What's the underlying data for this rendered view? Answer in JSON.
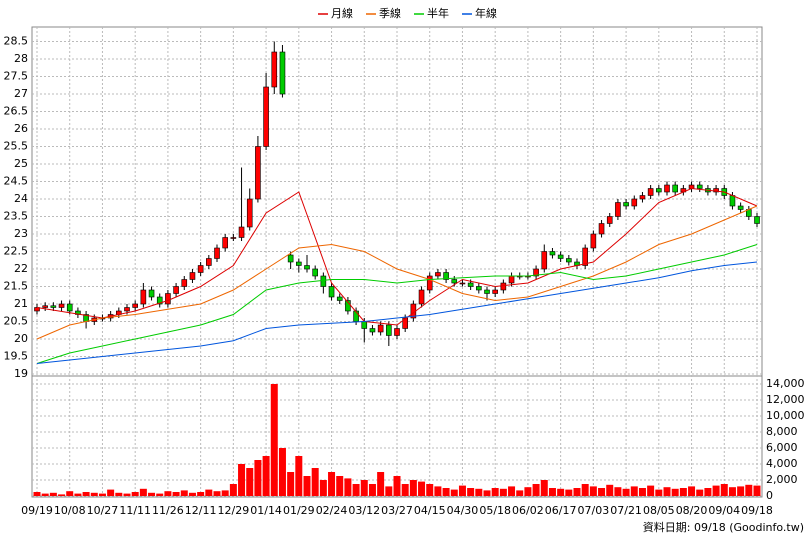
{
  "chart_data": {
    "type": "candlestick",
    "legend": [
      "月線",
      "季線",
      "半年",
      "年線"
    ],
    "footer": "資料日期: 09/18  (Goodinfo.tw)",
    "xlim": [
      0,
      88
    ],
    "xticks": [
      {
        "value": 0,
        "label": "09/19"
      },
      {
        "value": 4,
        "label": "10/08"
      },
      {
        "value": 8,
        "label": "10/27"
      },
      {
        "value": 12,
        "label": "11/11"
      },
      {
        "value": 16,
        "label": "11/26"
      },
      {
        "value": 20,
        "label": "12/11"
      },
      {
        "value": 24,
        "label": "12/29"
      },
      {
        "value": 28,
        "label": "01/14"
      },
      {
        "value": 32,
        "label": "01/29"
      },
      {
        "value": 36,
        "label": "02/24"
      },
      {
        "value": 40,
        "label": "03/12"
      },
      {
        "value": 44,
        "label": "03/27"
      },
      {
        "value": 48,
        "label": "04/15"
      },
      {
        "value": 52,
        "label": "04/30"
      },
      {
        "value": 56,
        "label": "05/18"
      },
      {
        "value": 60,
        "label": "06/02"
      },
      {
        "value": 64,
        "label": "06/17"
      },
      {
        "value": 68,
        "label": "07/03"
      },
      {
        "value": 72,
        "label": "07/21"
      },
      {
        "value": 76,
        "label": "08/05"
      },
      {
        "value": 80,
        "label": "08/20"
      },
      {
        "value": 84,
        "label": "09/04"
      },
      {
        "value": 88,
        "label": "09/18"
      }
    ],
    "ylim": [
      19,
      28.8
    ],
    "yticks": [
      19,
      19.5,
      20,
      20.5,
      21,
      21.5,
      22,
      22.5,
      23,
      23.5,
      24,
      24.5,
      25,
      25.5,
      26,
      26.5,
      27,
      27.5,
      28,
      28.5
    ],
    "y2lim": [
      0,
      15000
    ],
    "y2ticks": [
      0,
      {
        "value": 2000,
        "label": "2,000"
      },
      {
        "value": 4000,
        "label": "4,000"
      },
      {
        "value": 6000,
        "label": "6,000"
      },
      {
        "value": 8000,
        "label": "8,000"
      },
      {
        "value": 10000,
        "label": "10,000"
      },
      {
        "value": 12000,
        "label": "12,000"
      },
      {
        "value": 14000,
        "label": "14,000"
      }
    ],
    "grid": true,
    "up_color": "#ff0000",
    "down_color": "#00cc00",
    "volume_color": "#ff0000",
    "open": [
      20.8,
      20.9,
      20.95,
      20.9,
      21.0,
      20.8,
      20.7,
      20.5,
      20.6,
      20.6,
      20.7,
      20.8,
      20.9,
      21.0,
      21.4,
      21.2,
      21.0,
      21.3,
      21.5,
      21.7,
      21.9,
      22.1,
      22.3,
      22.6,
      22.9,
      22.9,
      23.2,
      24.0,
      25.5,
      27.2,
      28.2,
      22.4,
      22.2,
      22.1,
      22.0,
      21.8,
      21.5,
      21.2,
      21.1,
      20.8,
      20.5,
      20.3,
      20.2,
      20.4,
      20.1,
      20.3,
      20.6,
      21.0,
      21.4,
      21.8,
      21.9,
      21.7,
      21.6,
      21.6,
      21.5,
      21.4,
      21.3,
      21.4,
      21.6,
      21.8,
      21.8,
      21.8,
      22.0,
      22.5,
      22.4,
      22.3,
      22.2,
      22.1,
      22.6,
      23.0,
      23.3,
      23.5,
      23.9,
      23.8,
      24.0,
      24.1,
      24.3,
      24.2,
      24.4,
      24.2,
      24.3,
      24.4,
      24.3,
      24.2,
      24.3,
      24.1,
      23.8,
      23.7,
      23.5
    ],
    "high": [
      21.0,
      21.05,
      21.05,
      21.1,
      21.1,
      20.9,
      20.8,
      20.7,
      20.7,
      20.8,
      20.9,
      21.0,
      21.1,
      21.6,
      21.5,
      21.3,
      21.4,
      21.6,
      21.8,
      22.0,
      22.2,
      22.4,
      22.7,
      23.0,
      23.0,
      24.9,
      24.3,
      25.8,
      27.6,
      28.5,
      28.4,
      22.5,
      22.3,
      22.4,
      22.1,
      21.9,
      21.6,
      21.3,
      21.2,
      20.9,
      20.6,
      20.4,
      20.5,
      20.5,
      20.4,
      20.7,
      21.1,
      21.5,
      21.9,
      22.0,
      22.0,
      21.8,
      21.7,
      21.7,
      21.6,
      21.5,
      21.5,
      21.7,
      21.9,
      21.9,
      21.9,
      22.1,
      22.7,
      22.6,
      22.5,
      22.4,
      22.3,
      22.7,
      23.1,
      23.4,
      23.6,
      24.0,
      24.0,
      24.1,
      24.2,
      24.4,
      24.4,
      24.5,
      24.5,
      24.4,
      24.5,
      24.5,
      24.4,
      24.4,
      24.4,
      24.2,
      23.9,
      23.8,
      23.6
    ],
    "low": [
      20.7,
      20.8,
      20.8,
      20.8,
      20.7,
      20.6,
      20.3,
      20.4,
      20.5,
      20.5,
      20.6,
      20.7,
      20.8,
      20.9,
      21.1,
      20.9,
      20.9,
      21.2,
      21.4,
      21.6,
      21.8,
      22.0,
      22.2,
      22.5,
      22.8,
      22.8,
      23.1,
      23.9,
      25.4,
      27.0,
      26.9,
      22.0,
      21.9,
      21.9,
      21.7,
      21.3,
      21.1,
      21.0,
      20.7,
      20.4,
      19.9,
      20.1,
      20.1,
      19.8,
      20.0,
      20.2,
      20.5,
      20.9,
      21.3,
      21.7,
      21.6,
      21.5,
      21.5,
      21.4,
      21.3,
      21.1,
      21.2,
      21.3,
      21.5,
      21.7,
      21.7,
      21.7,
      21.9,
      22.3,
      22.2,
      22.1,
      22.0,
      22.0,
      22.5,
      22.9,
      23.2,
      23.4,
      23.7,
      23.7,
      23.9,
      24.0,
      24.1,
      24.1,
      24.1,
      24.1,
      24.2,
      24.2,
      24.1,
      24.1,
      24.0,
      23.7,
      23.6,
      23.4,
      23.2
    ],
    "close": [
      20.9,
      20.95,
      20.9,
      21.0,
      20.8,
      20.7,
      20.5,
      20.6,
      20.6,
      20.7,
      20.8,
      20.9,
      21.0,
      21.4,
      21.2,
      21.0,
      21.3,
      21.5,
      21.7,
      21.9,
      22.1,
      22.3,
      22.6,
      22.9,
      22.9,
      23.2,
      24.0,
      25.5,
      27.2,
      28.2,
      27.0,
      22.2,
      22.1,
      22.0,
      21.8,
      21.5,
      21.2,
      21.1,
      20.8,
      20.5,
      20.3,
      20.2,
      20.4,
      20.1,
      20.3,
      20.6,
      21.0,
      21.4,
      21.8,
      21.9,
      21.7,
      21.6,
      21.6,
      21.5,
      21.4,
      21.3,
      21.4,
      21.6,
      21.8,
      21.8,
      21.8,
      22.0,
      22.5,
      22.4,
      22.3,
      22.2,
      22.1,
      22.6,
      23.0,
      23.3,
      23.5,
      23.9,
      23.8,
      24.0,
      24.1,
      24.3,
      24.2,
      24.4,
      24.2,
      24.3,
      24.4,
      24.3,
      24.2,
      24.3,
      24.1,
      23.8,
      23.7,
      23.5,
      23.3
    ],
    "volume": [
      500,
      300,
      400,
      200,
      600,
      300,
      500,
      400,
      300,
      800,
      400,
      300,
      500,
      900,
      400,
      300,
      600,
      500,
      700,
      400,
      500,
      800,
      600,
      700,
      1500,
      4000,
      3500,
      4500,
      5000,
      14000,
      6000,
      3000,
      5000,
      2500,
      3500,
      2000,
      3000,
      2500,
      2200,
      1500,
      2000,
      1500,
      3000,
      1200,
      2500,
      1500,
      2000,
      1800,
      1500,
      1200,
      1000,
      800,
      1300,
      1000,
      900,
      700,
      1000,
      900,
      1200,
      700,
      1100,
      1500,
      2000,
      1000,
      900,
      800,
      1000,
      1500,
      1200,
      1000,
      1400,
      1100,
      900,
      1200,
      1000,
      1300,
      800,
      1100,
      900,
      1000,
      1200,
      800,
      1000,
      1300,
      1500,
      1100,
      1200,
      1400,
      1300
    ],
    "series": [
      {
        "name": "月線",
        "color": "#dd0000",
        "x": [
          0,
          4,
          8,
          12,
          16,
          20,
          24,
          28,
          32,
          36,
          40,
          44,
          48,
          52,
          56,
          60,
          64,
          68,
          72,
          76,
          80,
          84,
          88
        ],
        "values": [
          20.9,
          20.75,
          20.6,
          20.8,
          21.1,
          21.5,
          22.1,
          23.6,
          24.2,
          21.6,
          20.5,
          20.4,
          21.1,
          21.7,
          21.5,
          21.6,
          22.0,
          22.2,
          23.0,
          23.9,
          24.3,
          24.2,
          23.8
        ]
      },
      {
        "name": "季線",
        "color": "#ee6600",
        "x": [
          0,
          4,
          8,
          12,
          16,
          20,
          24,
          28,
          32,
          36,
          40,
          44,
          48,
          52,
          56,
          60,
          64,
          68,
          72,
          76,
          80,
          84,
          88
        ],
        "values": [
          20.0,
          20.4,
          20.6,
          20.7,
          20.85,
          21.0,
          21.4,
          22.0,
          22.6,
          22.7,
          22.5,
          22.0,
          21.7,
          21.3,
          21.1,
          21.2,
          21.5,
          21.8,
          22.2,
          22.7,
          23.0,
          23.4,
          23.8
        ]
      },
      {
        "name": "半年",
        "color": "#00cc00",
        "x": [
          0,
          4,
          8,
          12,
          16,
          20,
          24,
          28,
          32,
          36,
          40,
          44,
          48,
          52,
          56,
          60,
          64,
          68,
          72,
          76,
          80,
          84,
          88
        ],
        "values": [
          19.3,
          19.6,
          19.8,
          20.0,
          20.2,
          20.4,
          20.7,
          21.4,
          21.6,
          21.7,
          21.7,
          21.6,
          21.7,
          21.75,
          21.8,
          21.8,
          21.9,
          21.7,
          21.8,
          22.0,
          22.2,
          22.4,
          22.7
        ]
      },
      {
        "name": "年線",
        "color": "#0055dd",
        "x": [
          0,
          4,
          8,
          12,
          16,
          20,
          24,
          28,
          32,
          36,
          40,
          44,
          48,
          52,
          56,
          60,
          64,
          68,
          72,
          76,
          80,
          84,
          88
        ],
        "values": [
          19.3,
          19.4,
          19.5,
          19.6,
          19.7,
          19.8,
          19.95,
          20.3,
          20.4,
          20.45,
          20.5,
          20.6,
          20.7,
          20.85,
          21.0,
          21.15,
          21.3,
          21.45,
          21.6,
          21.75,
          21.95,
          22.1,
          22.2
        ]
      }
    ]
  }
}
